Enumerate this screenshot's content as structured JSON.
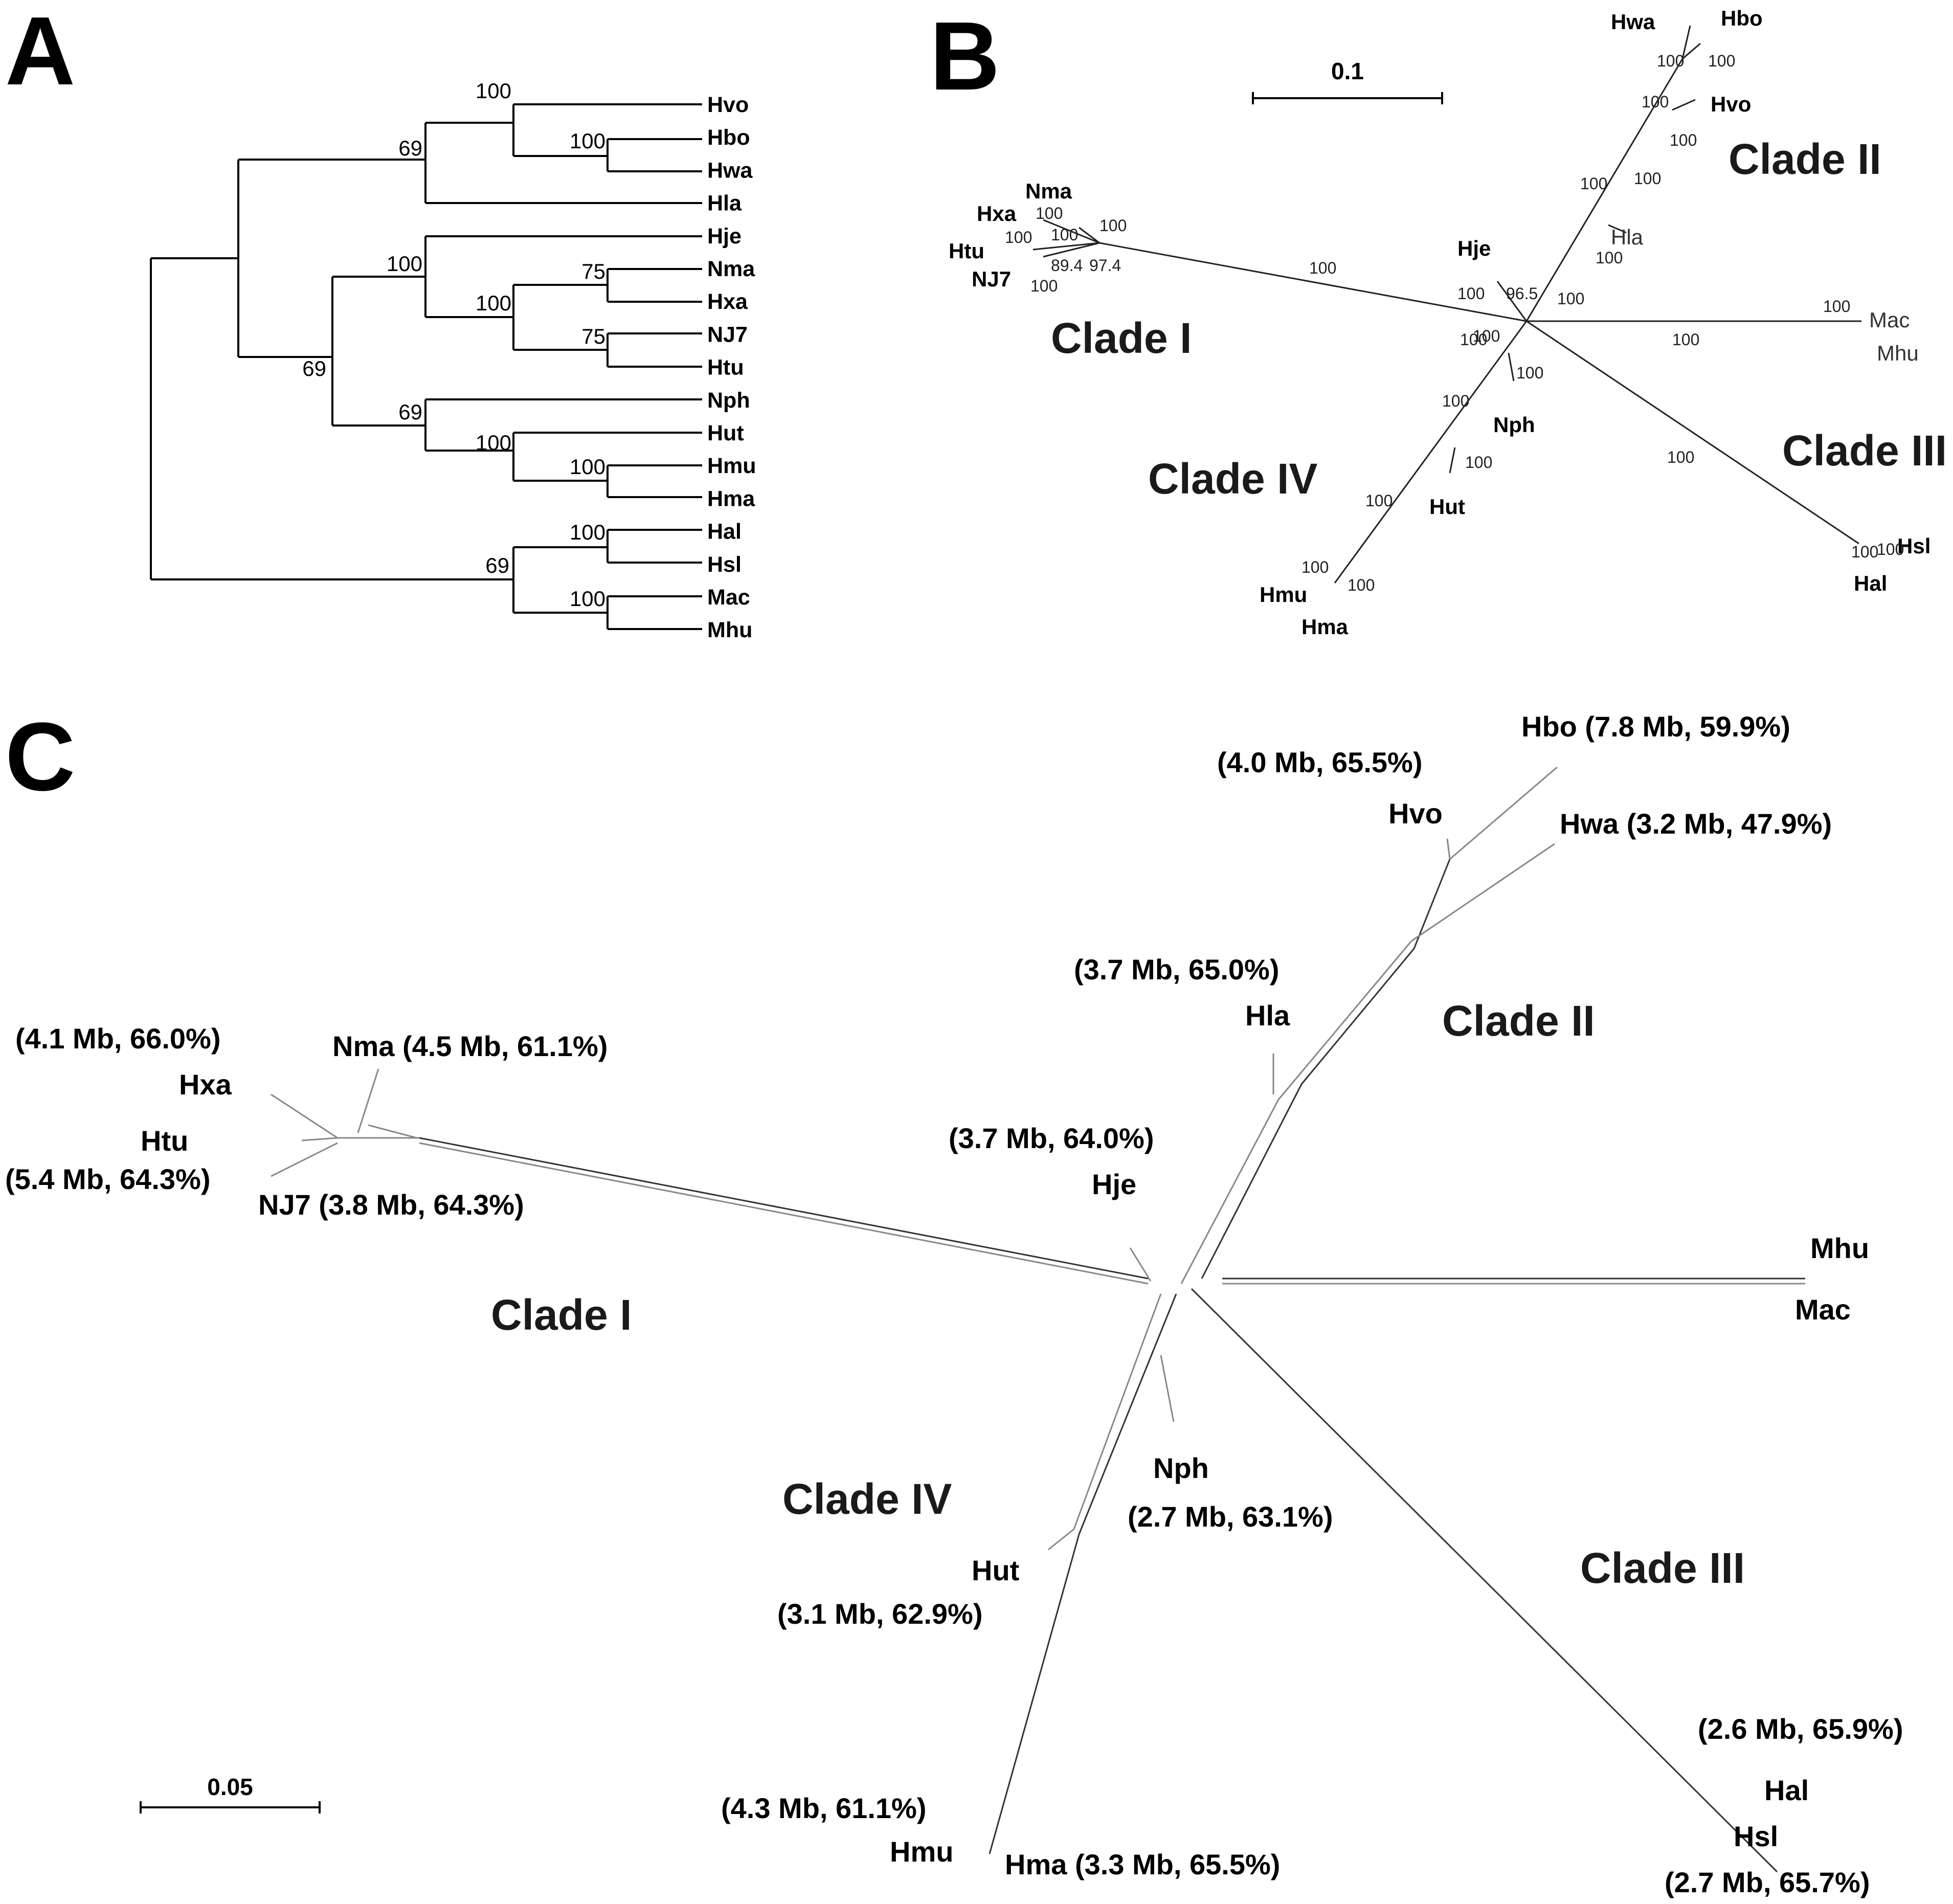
{
  "panels": {
    "a": "A",
    "b": "B",
    "c": "C"
  },
  "panel_a": {
    "leaves": [
      "Hvo",
      "Hbo",
      "Hwa",
      "Hla",
      "Hje",
      "Nma",
      "Hxa",
      "NJ7",
      "Htu",
      "Nph",
      "Hut",
      "Hmu",
      "Hma",
      "Hal",
      "Hsl",
      "Mac",
      "Mhu"
    ],
    "support": {
      "hvo_hbo_hwa": "100",
      "hbo_hwa": "100",
      "clade_ii": "69",
      "hje_group": "100",
      "nma_hxa": "75",
      "nj7_htu": "75",
      "nma_to_htu": "100",
      "clade_iv": "69",
      "hut_group": "100",
      "hmu_hma": "100",
      "hal_hsl": "100",
      "clade_iii": "69",
      "mac_mhu": "100",
      "inner": "69"
    }
  },
  "panel_b": {
    "scale": "0.1",
    "clades": [
      "Clade I",
      "Clade II",
      "Clade III",
      "Clade IV"
    ],
    "leaves": {
      "hwa": "Hwa",
      "hbo": "Hbo",
      "hvo": "Hvo",
      "hla": "Hla",
      "mac": "Mac",
      "mhu": "Mhu",
      "hsl": "Hsl",
      "hal": "Hal",
      "hje": "Hje",
      "nph": "Nph",
      "hut": "Hut",
      "hmu": "Hmu",
      "hma": "Hma",
      "nma": "Nma",
      "hxa": "Hxa",
      "htu": "Htu",
      "nj7": "NJ7"
    },
    "support": {
      "s1": "100",
      "s2": "100",
      "s3": "100",
      "s4": "100",
      "s5": "100",
      "s6": "100",
      "s7": "100",
      "s8": "100",
      "s9": "100",
      "s10": "100",
      "s11": "100",
      "s12": "100",
      "s13": "100",
      "s14": "100",
      "s15": "100",
      "s16": "100",
      "s17": "100",
      "s18": "100",
      "s19": "100",
      "s20": "100",
      "s21": "100",
      "s22": "100",
      "s23": "100",
      "s24": "100",
      "s25": "100",
      "s26": "89.4",
      "s27": "97.4",
      "s28": "96.5",
      "s29": "100",
      "s30": "100",
      "s31": "100"
    }
  },
  "panel_c": {
    "scale": "0.05",
    "clades": [
      "Clade I",
      "Clade II",
      "Clade III",
      "Clade IV"
    ],
    "taxa": {
      "hbo": "Hbo (7.8 Mb, 59.9%)",
      "hvo_ann": "(4.0 Mb, 65.5%)",
      "hvo": "Hvo",
      "hwa": "Hwa  (3.2 Mb, 47.9%)",
      "hla_ann": "(3.7 Mb, 65.0%)",
      "hla": "Hla",
      "hxa_ann": "(4.1 Mb, 66.0%)",
      "hxa": "Hxa",
      "nma": "Nma (4.5 Mb, 61.1%)",
      "htu": "Htu",
      "htu_ann": "(5.4 Mb, 64.3%)",
      "nj7": "NJ7 (3.8 Mb, 64.3%)",
      "hje_ann": "(3.7 Mb, 64.0%)",
      "hje": "Hje",
      "mhu": "Mhu",
      "mac": "Mac",
      "nph": "Nph",
      "nph_ann": "(2.7 Mb, 63.1%)",
      "hut": "Hut",
      "hut_ann": "(3.1 Mb, 62.9%)",
      "hal_ann": "(2.6 Mb, 65.9%)",
      "hal": "Hal",
      "hsl": "Hsl",
      "hsl_ann": "(2.7 Mb, 65.7%)",
      "hmu_ann": "(4.3 Mb, 61.1%)",
      "hmu": "Hmu",
      "hma": "Hma (3.3 Mb, 65.5%)"
    }
  }
}
